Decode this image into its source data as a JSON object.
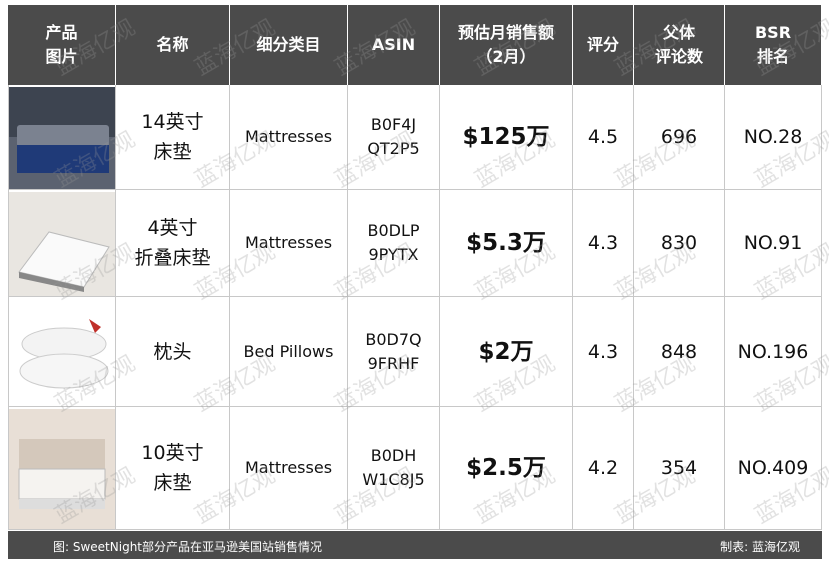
{
  "table": {
    "header": [
      [
        "产品",
        "图片"
      ],
      [
        "名称"
      ],
      [
        "细分类目"
      ],
      [
        "ASIN"
      ],
      [
        "预估月销售额",
        "（2月）"
      ],
      [
        "评分"
      ],
      [
        "父体",
        "评论数"
      ],
      [
        "BSR",
        "排名"
      ]
    ],
    "rows": [
      [
        [
          "14英寸",
          "床垫"
        ],
        [
          "Mattresses"
        ],
        [
          "B0F4J",
          "QT2P5"
        ],
        [
          "$125万"
        ],
        [
          "4.5"
        ],
        [
          "696"
        ],
        [
          "NO.28"
        ]
      ],
      [
        [
          "4英寸",
          "折叠床垫"
        ],
        [
          "Mattresses"
        ],
        [
          "B0DLP",
          "9PYTX"
        ],
        [
          "$5.3万"
        ],
        [
          "4.3"
        ],
        [
          "830"
        ],
        [
          "NO.91"
        ]
      ],
      [
        [
          "枕头"
        ],
        [
          "Bed Pillows"
        ],
        [
          "B0D7Q",
          "9FRHF"
        ],
        [
          "$2万"
        ],
        [
          "4.3"
        ],
        [
          "848"
        ],
        [
          "NO.196"
        ]
      ],
      [
        [
          "10英寸",
          "床垫"
        ],
        [
          "Mattresses"
        ],
        [
          "B0DH",
          "W1C8J5"
        ],
        [
          "$2.5万"
        ],
        [
          "4.2"
        ],
        [
          "354"
        ],
        [
          "NO.409"
        ]
      ]
    ]
  },
  "footer": {
    "source": "图: SweetNight部分产品在亚马逊美国站销售情况",
    "credit": "制表: 蓝海亿观"
  },
  "watermark": "蓝海亿观"
}
